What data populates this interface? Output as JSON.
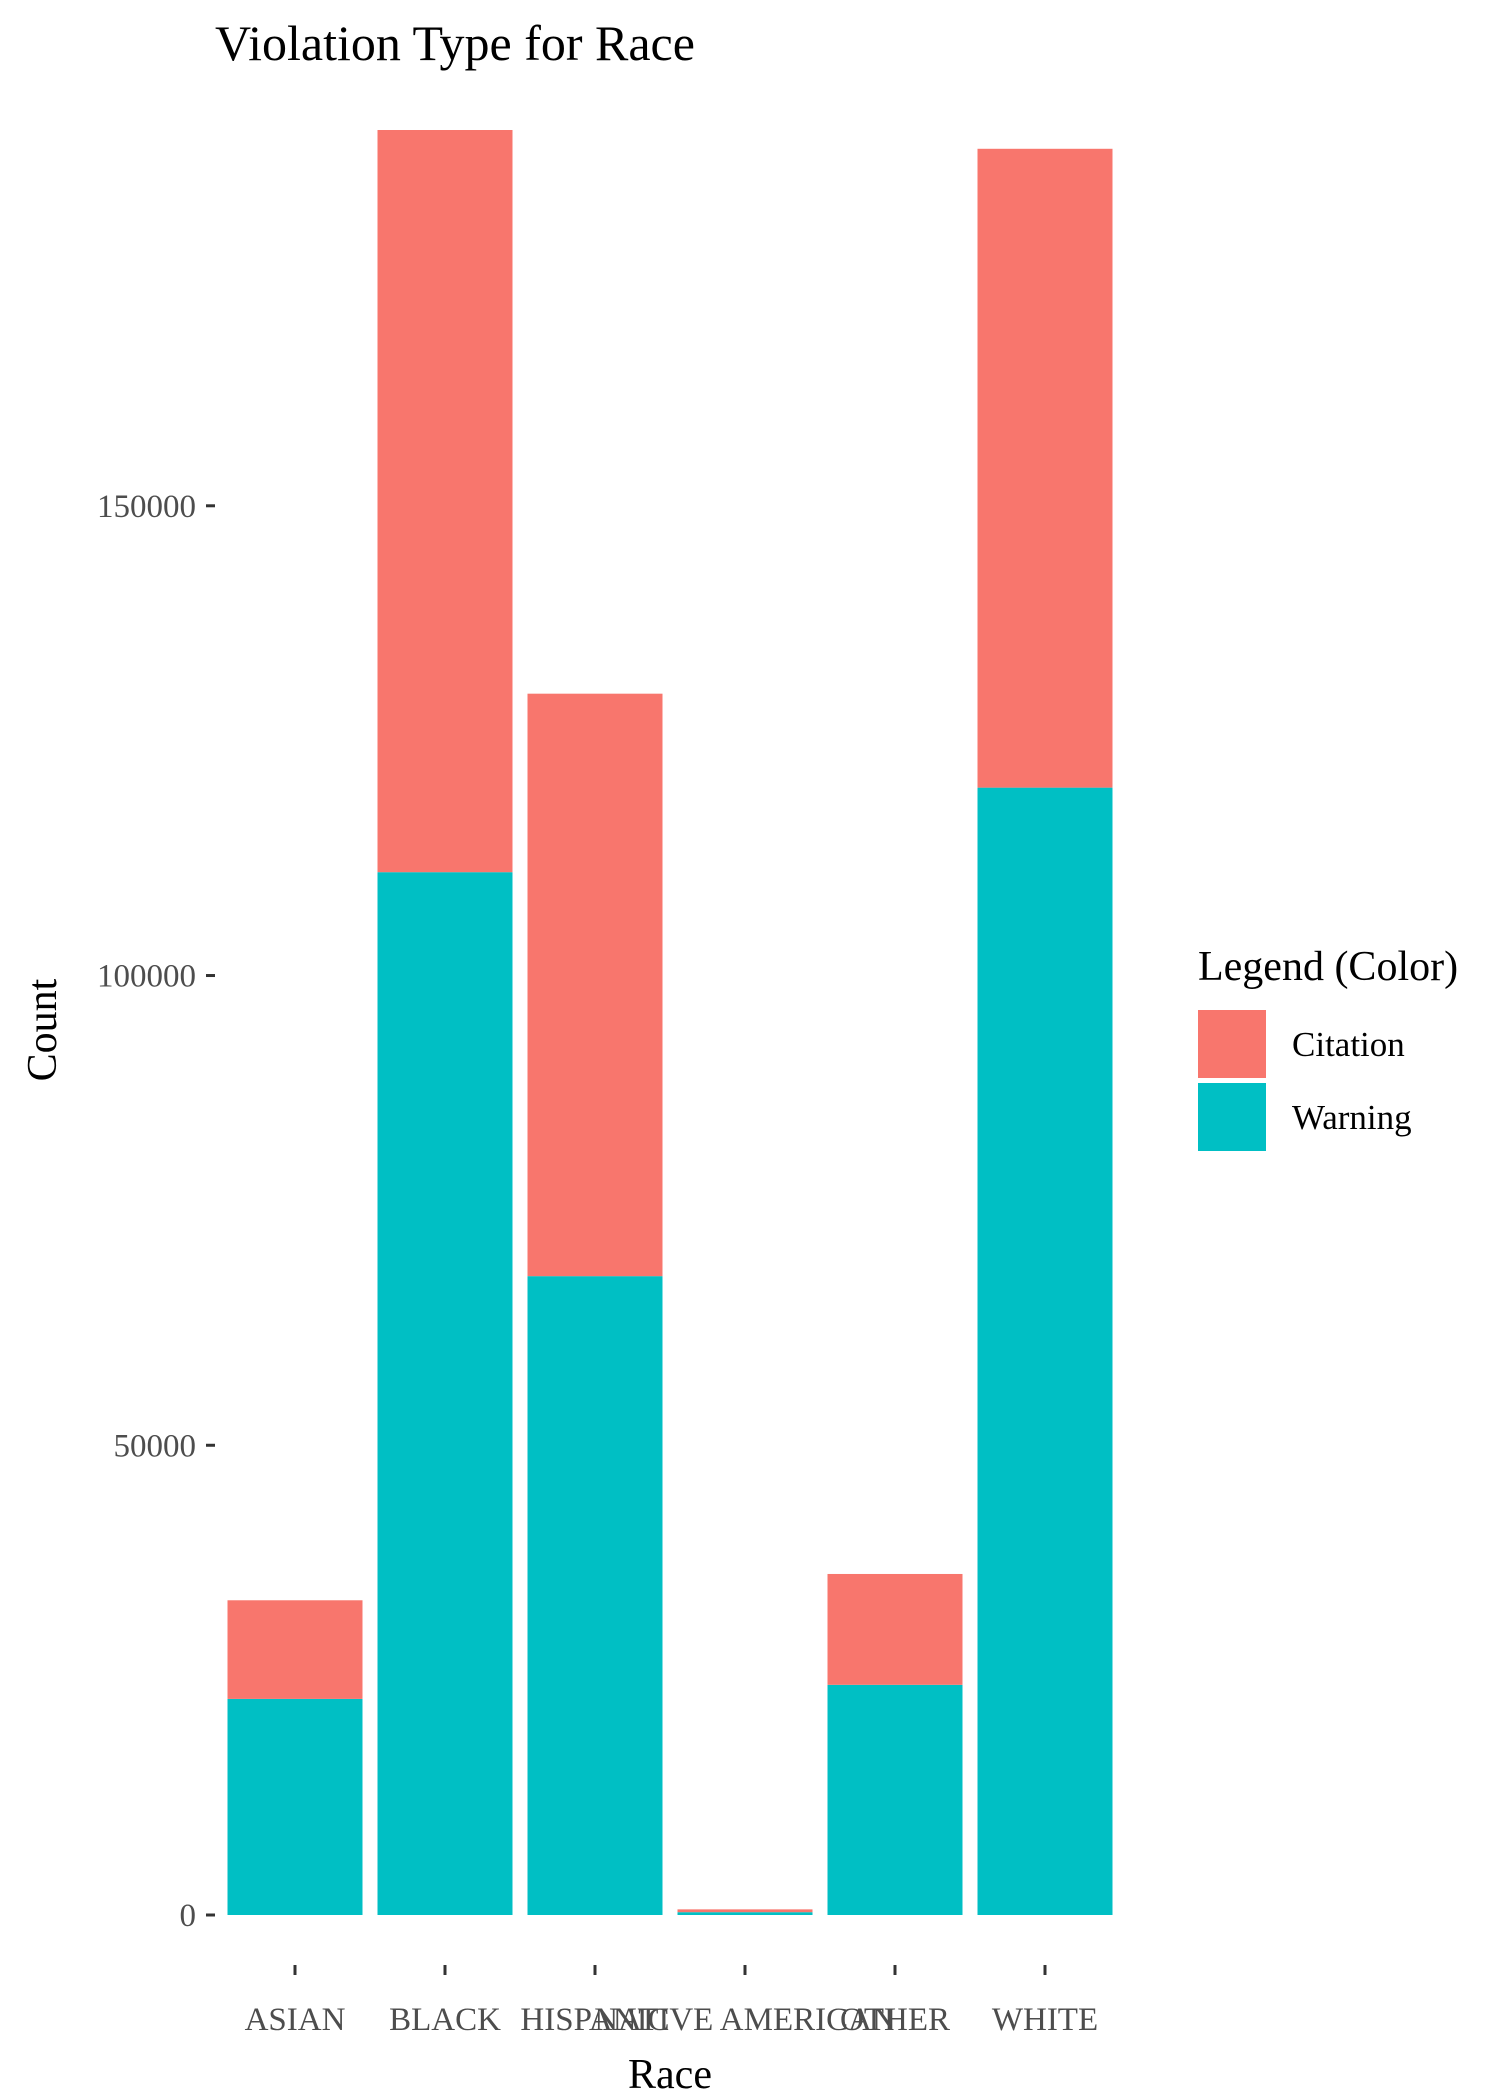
{
  "chart_data": {
    "type": "bar",
    "stacked": true,
    "title": "Violation Type for Race",
    "xlabel": "Race",
    "ylabel": "Count",
    "categories": [
      "ASIAN",
      "BLACK",
      "HISPANIC",
      "NATIVE AMERICAN",
      "OTHER",
      "WHITE"
    ],
    "series": [
      {
        "name": "Warning",
        "color": "#00BFC4",
        "values": [
          23000,
          111000,
          68000,
          300,
          24500,
          120000
        ]
      },
      {
        "name": "Citation",
        "color": "#F8766D",
        "values": [
          10500,
          79000,
          62000,
          300,
          11800,
          68000
        ]
      }
    ],
    "ylim": [
      0,
      190000
    ],
    "yticks": [
      0,
      50000,
      100000,
      150000
    ],
    "ytick_labels": [
      "0",
      "50000",
      "100000",
      "150000"
    ],
    "grid": false,
    "legend": {
      "title": "Legend (Color)",
      "position": "right",
      "entries": [
        {
          "label": "Citation",
          "color": "#F8766D"
        },
        {
          "label": "Warning",
          "color": "#00BFC4"
        }
      ]
    }
  }
}
